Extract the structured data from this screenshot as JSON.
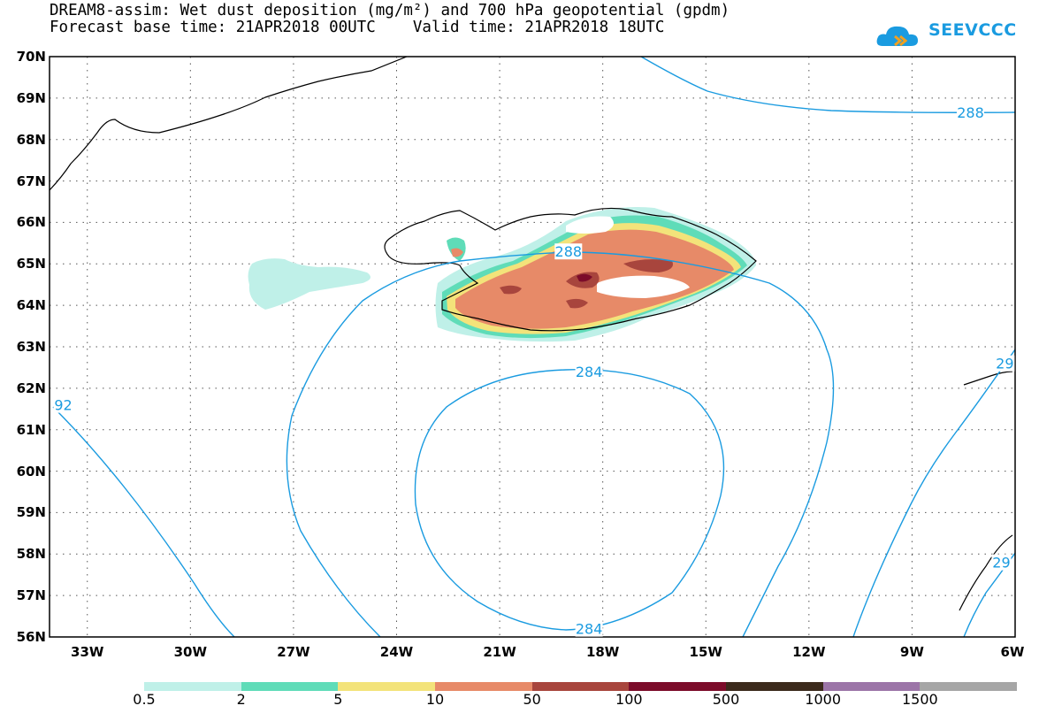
{
  "title": {
    "line1": "DREAM8-assim: Wet dust deposition (mg/m²) and 700 hPa geopotential (gpdm)",
    "line2": "Forecast base time: 21APR2018 00UTC    Valid time: 21APR2018 18UTC"
  },
  "logo": {
    "text": "SEEVCCC",
    "icon": "cloud-icon",
    "color": "#1a9be0"
  },
  "axes": {
    "latitudes": [
      "70N",
      "69N",
      "68N",
      "67N",
      "66N",
      "65N",
      "64N",
      "63N",
      "62N",
      "61N",
      "60N",
      "59N",
      "58N",
      "57N",
      "56N"
    ],
    "lat_values": [
      70,
      69,
      68,
      67,
      66,
      65,
      64,
      63,
      62,
      61,
      60,
      59,
      58,
      57,
      56
    ],
    "longitudes": [
      "33W",
      "30W",
      "27W",
      "24W",
      "21W",
      "18W",
      "15W",
      "12W",
      "9W",
      "6W"
    ],
    "lon_values": [
      -33,
      -30,
      -27,
      -24,
      -21,
      -18,
      -15,
      -12,
      -9,
      -6
    ],
    "lat_range": [
      56,
      70
    ],
    "lon_range": [
      -34.1,
      -6
    ],
    "grid": true
  },
  "contours": {
    "color": "#1a9be0",
    "labels": [
      {
        "text": "288",
        "lon": -7.3,
        "lat": 68.66
      },
      {
        "text": "288",
        "lon": -19.0,
        "lat": 65.3
      },
      {
        "text": "284",
        "lon": -18.4,
        "lat": 62.4
      },
      {
        "text": "284",
        "lon": -18.4,
        "lat": 56.2
      },
      {
        "text": "92",
        "lon": -33.7,
        "lat": 61.6
      },
      {
        "text": "29",
        "lon": -6.3,
        "lat": 62.6
      },
      {
        "text": "29",
        "lon": -6.4,
        "lat": 57.8
      }
    ]
  },
  "colorbar": {
    "colors": [
      "#bff0e8",
      "#5fdcb8",
      "#f3e37a",
      "#e78a68",
      "#a8453d",
      "#7c0c2a",
      "#3c2a1c",
      "#9c75a8",
      "#a6a6a6"
    ],
    "labels": [
      "0.5",
      "2",
      "5",
      "10",
      "50",
      "100",
      "500",
      "1000",
      "1500"
    ]
  }
}
